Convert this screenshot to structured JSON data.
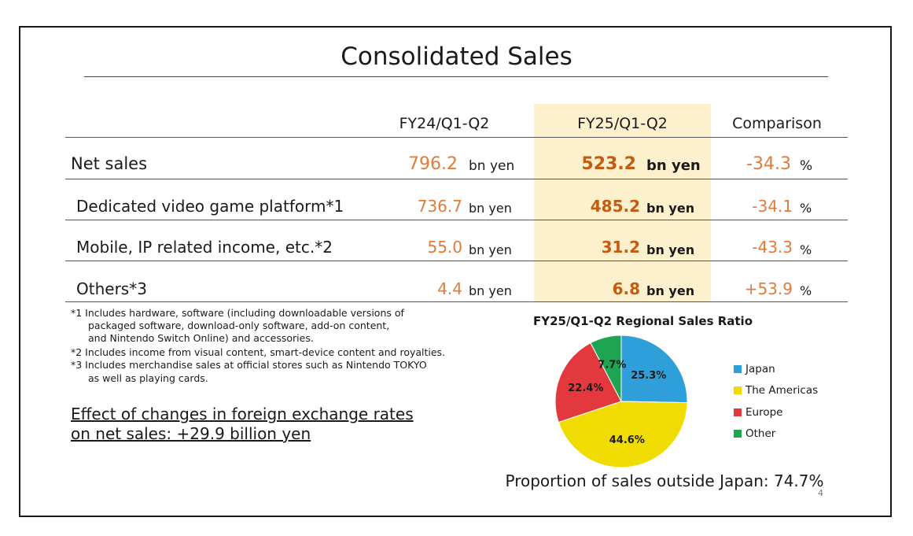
{
  "title": "Consolidated Sales",
  "table": {
    "headers": [
      "FY24/Q1-Q2",
      "FY25/Q1-Q2",
      "Comparison"
    ],
    "unit": "bn yen",
    "percent_sign": "%",
    "rows": [
      {
        "label": "Net sales",
        "fy24": "796.2",
        "fy25": "523.2",
        "comparison": "-34.3"
      },
      {
        "label": "Dedicated video game platform*1",
        "fy24": "736.7",
        "fy25": "485.2",
        "comparison": "-34.1"
      },
      {
        "label": "Mobile, IP related income, etc.*2",
        "fy24": "55.0",
        "fy25": "31.2",
        "comparison": "-43.3"
      },
      {
        "label": "Others*3",
        "fy24": "4.4",
        "fy25": "6.8",
        "comparison": "+53.9"
      }
    ]
  },
  "notes": [
    "*1 Includes hardware, software (including downloadable versions of",
    "packaged software, download-only software, add-on content,",
    "and Nintendo Switch Online) and accessories.",
    "*2 Includes income from visual content, smart-device content and royalties.",
    "*3 Includes merchandise sales at official stores such as Nintendo TOKYO",
    "as well as playing cards."
  ],
  "fx_effect": {
    "line1": "Effect of changes in foreign exchange rates",
    "line2": "on net sales: +29.9 billion yen"
  },
  "chart_data": {
    "type": "pie",
    "title": "FY25/Q1-Q2 Regional Sales Ratio",
    "legend_position": "right",
    "slices": [
      {
        "name": "Japan",
        "value": 25.3,
        "label": "25.3%",
        "color": "#2e9fd9"
      },
      {
        "name": "The Americas",
        "value": 44.6,
        "label": "44.6%",
        "color": "#f0dc00"
      },
      {
        "name": "Europe",
        "value": 22.4,
        "label": "22.4%",
        "color": "#e3393e"
      },
      {
        "name": "Other",
        "value": 7.7,
        "label": "7.7%",
        "color": "#1fa552"
      }
    ]
  },
  "footer": "Proportion of sales outside Japan: 74.7%",
  "page_number": "4"
}
